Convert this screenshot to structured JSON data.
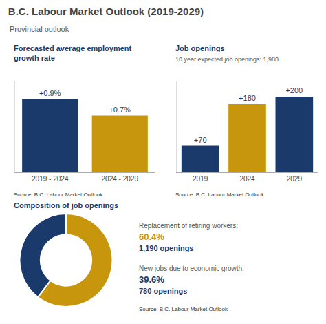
{
  "title": "B.C. Labour Market Outlook (2019-2029)",
  "subtitle": "Provincial outlook",
  "chart_data": [
    {
      "type": "bar",
      "title": "Forecasted average employment growth rate",
      "categories": [
        "2019 - 2024",
        "2024 - 2029"
      ],
      "values": [
        0.9,
        0.7
      ],
      "value_labels": [
        "+0.9%",
        "+0.7%"
      ],
      "colors": [
        "#1a3a6b",
        "#c8960c"
      ],
      "ylim": [
        0,
        1.12
      ],
      "data_labels": true,
      "tick_labels": "x",
      "grid": false,
      "annotations": [
        "Source: B.C. Labour Market Outlook"
      ]
    },
    {
      "type": "bar",
      "title": "Job openings",
      "subtitle": "10 year expected job openings: 1,980",
      "categories": [
        "2019",
        "2024",
        "2029"
      ],
      "values": [
        70,
        180,
        200
      ],
      "value_labels": [
        "+70",
        "+180",
        "+200"
      ],
      "colors": [
        "#1a3a6b",
        "#c8960c",
        "#1a3a6b"
      ],
      "ylim": [
        0,
        240
      ],
      "data_labels": true,
      "tick_labels": "x",
      "grid": false,
      "annotations": [
        "Source: B.C. Labour Market Outlook"
      ]
    },
    {
      "type": "pie",
      "title": "Composition of job openings",
      "categories": [
        "Replacement of retiring workers:",
        "New jobs due to economic growth:"
      ],
      "values": [
        60.4,
        39.6
      ],
      "value_labels": [
        "60.4%",
        "39.6%"
      ],
      "colors": [
        "#c8960c",
        "#1a3a6b"
      ],
      "data_labels": true,
      "annotations": [
        "1,190 openings",
        "780 openings",
        "Source: B.C. Labour Market Outlook"
      ]
    }
  ]
}
